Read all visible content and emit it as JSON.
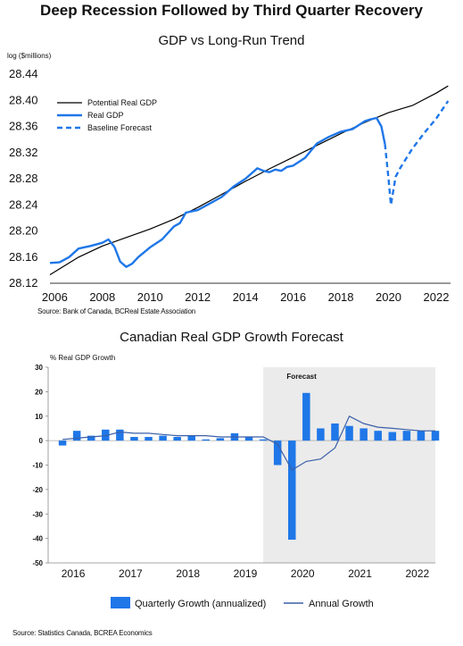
{
  "title": "Deep Recession Followed by Third Quarter Recovery",
  "colors": {
    "blue": "#1f77e8",
    "black": "#000000",
    "annual_line": "#3a5fa8",
    "forecast_shade": "#ebebeb"
  },
  "chart_data": [
    {
      "type": "line",
      "title": "GDP vs Long-Run Trend",
      "ylabel": "log ($millions)",
      "source": "Source: Bank of Canada, BCReal Estate Association",
      "xlim": [
        2005.8,
        2022.6
      ],
      "ylim": [
        28.12,
        28.44
      ],
      "yticks": [
        "28.12",
        "28.16",
        "28.20",
        "28.24",
        "28.28",
        "28.32",
        "28.36",
        "28.40",
        "28.44"
      ],
      "xticks": [
        "2006",
        "2008",
        "2010",
        "2012",
        "2014",
        "2016",
        "2018",
        "2020",
        "2022"
      ],
      "legend_position": "top-left",
      "series": [
        {
          "name": "Potential Real GDP",
          "style": "solid-black",
          "x": [
            2005.8,
            2007,
            2008,
            2009,
            2010,
            2011,
            2012,
            2013,
            2014,
            2015,
            2016,
            2017,
            2018,
            2019,
            2020,
            2021,
            2022,
            2022.5
          ],
          "y": [
            28.133,
            28.16,
            28.177,
            28.19,
            28.203,
            28.218,
            28.236,
            28.256,
            28.276,
            28.295,
            28.313,
            28.331,
            28.349,
            28.366,
            28.381,
            28.392,
            28.411,
            28.422
          ]
        },
        {
          "name": "Real GDP",
          "style": "solid-blue",
          "x": [
            2005.8,
            2006.2,
            2006.6,
            2007.0,
            2007.5,
            2008.0,
            2008.25,
            2008.5,
            2008.75,
            2009.0,
            2009.25,
            2009.5,
            2010.0,
            2010.5,
            2011.0,
            2011.25,
            2011.5,
            2012.0,
            2012.5,
            2013.0,
            2013.5,
            2014.0,
            2014.5,
            2014.75,
            2015.0,
            2015.25,
            2015.5,
            2015.75,
            2016.0,
            2016.5,
            2017.0,
            2017.5,
            2018.0,
            2018.5,
            2019.0,
            2019.25,
            2019.5,
            2019.7,
            2019.85
          ],
          "y": [
            28.151,
            28.152,
            28.16,
            28.173,
            28.177,
            28.182,
            28.187,
            28.176,
            28.153,
            28.145,
            28.15,
            28.16,
            28.175,
            28.187,
            28.207,
            28.212,
            28.228,
            28.232,
            28.242,
            28.252,
            28.268,
            28.28,
            28.296,
            28.292,
            28.29,
            28.294,
            28.292,
            28.298,
            28.3,
            28.312,
            28.334,
            28.344,
            28.352,
            28.356,
            28.368,
            28.371,
            28.373,
            28.36,
            28.333
          ]
        },
        {
          "name": "Baseline Forecast",
          "style": "dashed-blue",
          "x": [
            2019.85,
            2020.0,
            2020.1,
            2020.2,
            2020.3,
            2020.5,
            2021.0,
            2021.5,
            2022.0,
            2022.5
          ],
          "y": [
            28.333,
            28.28,
            28.24,
            28.262,
            28.283,
            28.297,
            28.326,
            28.35,
            28.372,
            28.399
          ]
        }
      ]
    },
    {
      "type": "bar",
      "title": "Canadian Real GDP Growth Forecast",
      "ylabel": "% Real GDP Growth",
      "source": "Source: Statistics Canada, BCREA Economics",
      "forecast_label": "Forecast",
      "forecast_start": 2019.5,
      "xlim": [
        2015.75,
        2022.5
      ],
      "ylim": [
        -50,
        30
      ],
      "yticks": [
        "30",
        "20",
        "10",
        "0",
        "-10",
        "-20",
        "-30",
        "-40",
        "-50"
      ],
      "xticks": [
        "2016",
        "2017",
        "2018",
        "2019",
        "2020",
        "2021",
        "2022"
      ],
      "legend_position": "bottom-center",
      "series": [
        {
          "name": "Quarterly Growth (annualized)",
          "style": "bar-blue",
          "x": [
            2016.0,
            2016.25,
            2016.5,
            2016.75,
            2017.0,
            2017.25,
            2017.5,
            2017.75,
            2018.0,
            2018.25,
            2018.5,
            2018.75,
            2019.0,
            2019.25,
            2019.5,
            2019.75,
            2020.0,
            2020.25,
            2020.5,
            2020.75,
            2021.0,
            2021.25,
            2021.5,
            2021.75,
            2022.0,
            2022.25,
            2022.5
          ],
          "values": [
            -2,
            4,
            2,
            4.5,
            4.5,
            1.5,
            1.5,
            2,
            1.5,
            2,
            0.5,
            1,
            3,
            1.5,
            0.5,
            -10,
            -40.5,
            19.5,
            5,
            7,
            6,
            5,
            4,
            3.5,
            4,
            4,
            4
          ]
        },
        {
          "name": "Annual Growth",
          "style": "line-navy",
          "x": [
            2016.0,
            2016.25,
            2016.5,
            2016.75,
            2017.0,
            2017.25,
            2017.5,
            2017.75,
            2018.0,
            2018.25,
            2018.5,
            2018.75,
            2019.0,
            2019.25,
            2019.5,
            2019.75,
            2020.0,
            2020.25,
            2020.5,
            2020.75,
            2021.0,
            2021.25,
            2021.5,
            2021.75,
            2022.0,
            2022.25,
            2022.5
          ],
          "values": [
            0.5,
            1,
            1.5,
            2,
            3.5,
            3,
            3,
            2.5,
            2,
            2,
            2,
            1.5,
            1.5,
            1.5,
            1.5,
            -1.5,
            -12,
            -8.5,
            -7.5,
            -3,
            10,
            7,
            5.5,
            5,
            4.5,
            4,
            4
          ]
        }
      ]
    }
  ]
}
